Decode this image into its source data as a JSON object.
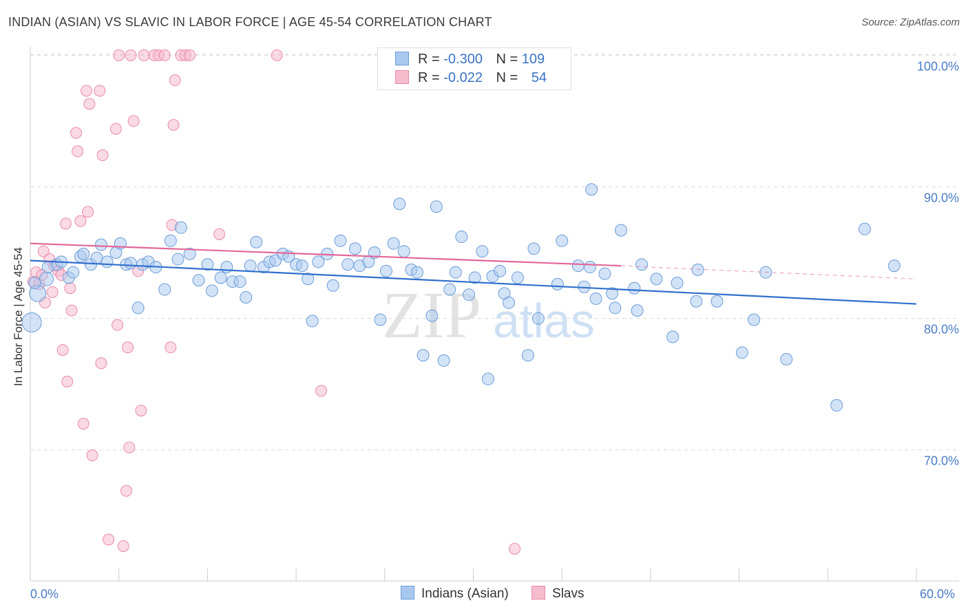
{
  "title": "INDIAN (ASIAN) VS SLAVIC IN LABOR FORCE | AGE 45-54 CORRELATION CHART",
  "source": "Source: ZipAtlas.com",
  "watermark": "ZIPatlas",
  "legend": {
    "rows": [
      {
        "r_label": "R =",
        "r_value": "-0.300",
        "n_label": "N =",
        "n_value": "109",
        "color": "#a8c8f0",
        "border": "#6b9bd6"
      },
      {
        "r_label": "R =",
        "r_value": "-0.022",
        "n_label": "N =",
        "n_value": "54",
        "color": "#f6bccd",
        "border": "#e88aa8"
      }
    ]
  },
  "bottom_legend": [
    "Indians (Asian)",
    "Slavs"
  ],
  "colors": {
    "blue_fill": "#a8c8f0",
    "blue_stroke": "#6b9bd6",
    "blue_line": "#2f6fcc",
    "pink_fill": "#f6bccd",
    "pink_stroke": "#e88aa8",
    "pink_line": "#e2679a",
    "grid": "#d8d8d8",
    "tick_text": "#4a7cc7"
  },
  "chart_data": {
    "type": "scatter",
    "title": "INDIAN (ASIAN) VS SLAVIC IN LABOR FORCE | AGE 45-54 CORRELATION CHART",
    "xlabel": "",
    "ylabel": "In Labor Force | Age 45-54",
    "xlim": [
      0,
      60
    ],
    "ylim": [
      60,
      100
    ],
    "x_tick_labels": [
      "0.0%",
      "60.0%"
    ],
    "y_tick_values": [
      70,
      80,
      90,
      100
    ],
    "y_tick_labels": [
      "70.0%",
      "80.0%",
      "90.0%",
      "100.0%"
    ],
    "series": [
      {
        "name": "Indians (Asian)",
        "R": -0.3,
        "N": 109,
        "trend": {
          "x": [
            0,
            60
          ],
          "y": [
            84.4,
            81.1
          ]
        },
        "trend_dashed_after": null,
        "points": [
          [
            0.1,
            79.7
          ],
          [
            0.5,
            81.9
          ],
          [
            1.1,
            83.0
          ],
          [
            1.2,
            83.9
          ],
          [
            1.8,
            84.1
          ],
          [
            2.1,
            84.3
          ],
          [
            2.6,
            83.1
          ],
          [
            2.9,
            83.5
          ],
          [
            3.4,
            84.7
          ],
          [
            3.6,
            84.9
          ],
          [
            4.1,
            84.1
          ],
          [
            4.5,
            84.6
          ],
          [
            4.8,
            85.6
          ],
          [
            5.2,
            84.3
          ],
          [
            5.8,
            85.0
          ],
          [
            6.1,
            85.7
          ],
          [
            6.5,
            84.1
          ],
          [
            6.8,
            84.2
          ],
          [
            7.3,
            80.8
          ],
          [
            7.6,
            84.1
          ],
          [
            8.0,
            84.3
          ],
          [
            8.5,
            83.9
          ],
          [
            9.1,
            82.2
          ],
          [
            9.5,
            85.9
          ],
          [
            10.0,
            84.5
          ],
          [
            10.2,
            86.9
          ],
          [
            10.8,
            84.9
          ],
          [
            11.4,
            82.9
          ],
          [
            12.0,
            84.1
          ],
          [
            12.3,
            82.1
          ],
          [
            12.9,
            83.1
          ],
          [
            13.3,
            83.9
          ],
          [
            13.7,
            82.8
          ],
          [
            14.2,
            82.8
          ],
          [
            14.6,
            81.6
          ],
          [
            14.9,
            84.0
          ],
          [
            15.3,
            85.8
          ],
          [
            15.8,
            83.9
          ],
          [
            16.2,
            84.3
          ],
          [
            16.6,
            84.4
          ],
          [
            17.1,
            84.9
          ],
          [
            17.5,
            84.7
          ],
          [
            18.0,
            84.1
          ],
          [
            18.4,
            84.0
          ],
          [
            18.8,
            83.0
          ],
          [
            19.1,
            79.8
          ],
          [
            19.5,
            84.3
          ],
          [
            20.1,
            84.9
          ],
          [
            20.5,
            82.5
          ],
          [
            21.0,
            85.9
          ],
          [
            21.5,
            84.1
          ],
          [
            22.0,
            85.3
          ],
          [
            22.3,
            84.0
          ],
          [
            22.9,
            84.3
          ],
          [
            23.3,
            85.0
          ],
          [
            23.7,
            79.9
          ],
          [
            24.1,
            83.6
          ],
          [
            24.6,
            85.7
          ],
          [
            25.0,
            88.7
          ],
          [
            25.3,
            85.1
          ],
          [
            25.8,
            83.7
          ],
          [
            26.2,
            83.5
          ],
          [
            26.6,
            77.2
          ],
          [
            27.2,
            80.2
          ],
          [
            27.5,
            88.5
          ],
          [
            28.0,
            76.8
          ],
          [
            28.4,
            82.2
          ],
          [
            28.8,
            83.5
          ],
          [
            29.2,
            86.2
          ],
          [
            29.7,
            81.8
          ],
          [
            30.1,
            83.1
          ],
          [
            30.6,
            85.1
          ],
          [
            31.0,
            75.4
          ],
          [
            31.3,
            83.2
          ],
          [
            31.8,
            83.6
          ],
          [
            32.1,
            81.9
          ],
          [
            32.4,
            81.2
          ],
          [
            33.0,
            83.1
          ],
          [
            33.7,
            77.2
          ],
          [
            34.1,
            85.3
          ],
          [
            34.4,
            80.0
          ],
          [
            35.7,
            82.6
          ],
          [
            36.0,
            85.9
          ],
          [
            37.1,
            84.0
          ],
          [
            37.5,
            82.4
          ],
          [
            37.9,
            83.9
          ],
          [
            38.3,
            81.5
          ],
          [
            38.9,
            83.4
          ],
          [
            39.4,
            81.9
          ],
          [
            39.6,
            80.8
          ],
          [
            40.0,
            86.7
          ],
          [
            40.9,
            82.3
          ],
          [
            41.1,
            80.6
          ],
          [
            41.4,
            84.1
          ],
          [
            42.4,
            83.0
          ],
          [
            43.5,
            78.6
          ],
          [
            43.8,
            82.7
          ],
          [
            45.1,
            81.3
          ],
          [
            45.2,
            83.7
          ],
          [
            46.5,
            81.3
          ],
          [
            38.0,
            89.8
          ],
          [
            48.2,
            77.4
          ],
          [
            49.0,
            79.9
          ],
          [
            49.8,
            83.5
          ],
          [
            51.2,
            76.9
          ],
          [
            54.6,
            73.4
          ],
          [
            56.5,
            86.8
          ],
          [
            58.5,
            84.0
          ],
          [
            0.3,
            82.7
          ]
        ]
      },
      {
        "name": "Slavs",
        "R": -0.022,
        "N": 54,
        "trend": {
          "x": [
            0,
            40
          ],
          "y": [
            85.7,
            84.0
          ]
        },
        "trend_dashed": {
          "x": [
            40,
            60
          ],
          "y": [
            84.0,
            83.0
          ]
        },
        "points": [
          [
            0.2,
            82.8
          ],
          [
            0.4,
            83.5
          ],
          [
            0.6,
            82.6
          ],
          [
            0.8,
            83.3
          ],
          [
            0.9,
            85.1
          ],
          [
            1.0,
            81.2
          ],
          [
            1.3,
            84.5
          ],
          [
            1.5,
            82.0
          ],
          [
            1.6,
            84.0
          ],
          [
            1.9,
            83.6
          ],
          [
            2.1,
            83.3
          ],
          [
            2.2,
            77.6
          ],
          [
            2.4,
            87.2
          ],
          [
            2.5,
            75.2
          ],
          [
            2.7,
            82.3
          ],
          [
            2.8,
            80.6
          ],
          [
            3.1,
            94.1
          ],
          [
            3.2,
            92.7
          ],
          [
            3.4,
            87.4
          ],
          [
            3.6,
            72.0
          ],
          [
            3.8,
            97.3
          ],
          [
            3.9,
            88.1
          ],
          [
            4.0,
            96.3
          ],
          [
            4.2,
            69.6
          ],
          [
            4.7,
            97.3
          ],
          [
            4.8,
            76.6
          ],
          [
            4.9,
            92.4
          ],
          [
            5.3,
            63.2
          ],
          [
            5.8,
            94.4
          ],
          [
            5.9,
            79.5
          ],
          [
            6.0,
            100.0
          ],
          [
            6.3,
            62.7
          ],
          [
            6.5,
            66.9
          ],
          [
            6.6,
            77.8
          ],
          [
            6.7,
            70.2
          ],
          [
            6.8,
            100.0
          ],
          [
            7.0,
            95.0
          ],
          [
            7.5,
            73.0
          ],
          [
            7.7,
            100.0
          ],
          [
            8.4,
            100.0
          ],
          [
            8.7,
            100.0
          ],
          [
            9.1,
            100.0
          ],
          [
            9.6,
            87.1
          ],
          [
            9.5,
            77.8
          ],
          [
            9.7,
            94.7
          ],
          [
            9.8,
            98.1
          ],
          [
            10.2,
            100.0
          ],
          [
            10.5,
            100.0
          ],
          [
            10.8,
            100.0
          ],
          [
            12.8,
            86.4
          ],
          [
            16.7,
            100.0
          ],
          [
            19.7,
            74.5
          ],
          [
            32.8,
            62.5
          ],
          [
            7.3,
            83.6
          ]
        ]
      }
    ]
  }
}
